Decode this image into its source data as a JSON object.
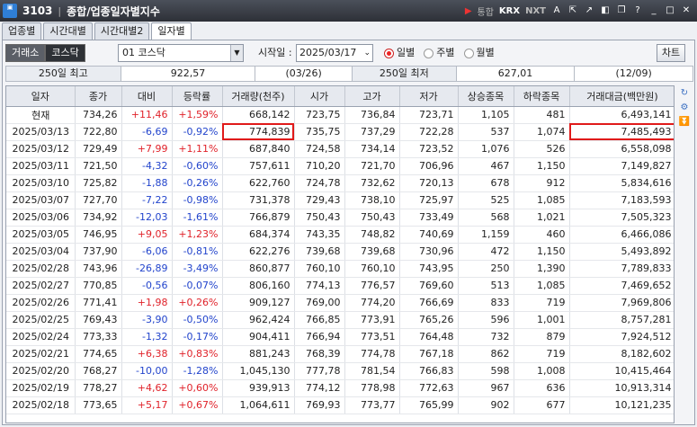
{
  "window": {
    "code": "3103",
    "title": "종합/업종일자별지수",
    "logo_text": "종합\n이미",
    "right_label": "통합",
    "krx": "KRX",
    "nxt": "NXT"
  },
  "tabs": [
    {
      "label": "업종별"
    },
    {
      "label": "시간대별"
    },
    {
      "label": "시간대별2"
    },
    {
      "label": "일자별"
    }
  ],
  "controls": {
    "exchange": "거래소",
    "kosdaq": "코스닥",
    "selected_index": "01  코스닥",
    "start_label": "시작일 :",
    "start_date": "2025/03/17",
    "daily": "일별",
    "weekly": "주별",
    "monthly": "월별",
    "chart": "차트"
  },
  "summary": {
    "high_label": "250일 최고",
    "high_value": "922,57",
    "high_date": "(03/26)",
    "low_label": "250일 최저",
    "low_value": "627,01",
    "low_date": "(12/09)"
  },
  "columns": [
    "일자",
    "종가",
    "대비",
    "등락률",
    "거래량(천주)",
    "시가",
    "고가",
    "저가",
    "상승종목",
    "하락종목",
    "거래대금(백만원)"
  ],
  "rows": [
    [
      "현재",
      "734,26",
      "+11,46",
      "+1,59%",
      "668,142",
      "723,75",
      "736,84",
      "723,71",
      "1,105",
      "481",
      "6,493,141"
    ],
    [
      "2025/03/13",
      "722,80",
      "-6,69",
      "-0,92%",
      "774,839",
      "735,75",
      "737,29",
      "722,28",
      "537",
      "1,074",
      "7,485,493"
    ],
    [
      "2025/03/12",
      "729,49",
      "+7,99",
      "+1,11%",
      "687,840",
      "724,58",
      "734,14",
      "723,52",
      "1,076",
      "526",
      "6,558,098"
    ],
    [
      "2025/03/11",
      "721,50",
      "-4,32",
      "-0,60%",
      "757,611",
      "710,20",
      "721,70",
      "706,96",
      "467",
      "1,150",
      "7,149,827"
    ],
    [
      "2025/03/10",
      "725,82",
      "-1,88",
      "-0,26%",
      "622,760",
      "724,78",
      "732,62",
      "720,13",
      "678",
      "912",
      "5,834,616"
    ],
    [
      "2025/03/07",
      "727,70",
      "-7,22",
      "-0,98%",
      "731,378",
      "729,43",
      "738,10",
      "725,97",
      "525",
      "1,085",
      "7,183,593"
    ],
    [
      "2025/03/06",
      "734,92",
      "-12,03",
      "-1,61%",
      "766,879",
      "750,43",
      "750,43",
      "733,49",
      "568",
      "1,021",
      "7,505,323"
    ],
    [
      "2025/03/05",
      "746,95",
      "+9,05",
      "+1,23%",
      "684,374",
      "743,35",
      "748,82",
      "740,69",
      "1,159",
      "460",
      "6,466,086"
    ],
    [
      "2025/03/04",
      "737,90",
      "-6,06",
      "-0,81%",
      "622,276",
      "739,68",
      "739,68",
      "730,96",
      "472",
      "1,150",
      "5,493,892"
    ],
    [
      "2025/02/28",
      "743,96",
      "-26,89",
      "-3,49%",
      "860,877",
      "760,10",
      "760,10",
      "743,95",
      "250",
      "1,390",
      "7,789,833"
    ],
    [
      "2025/02/27",
      "770,85",
      "-0,56",
      "-0,07%",
      "806,160",
      "774,13",
      "776,57",
      "769,60",
      "513",
      "1,085",
      "7,469,652"
    ],
    [
      "2025/02/26",
      "771,41",
      "+1,98",
      "+0,26%",
      "909,127",
      "769,00",
      "774,20",
      "766,69",
      "833",
      "719",
      "7,969,806"
    ],
    [
      "2025/02/25",
      "769,43",
      "-3,90",
      "-0,50%",
      "962,424",
      "766,85",
      "773,91",
      "765,26",
      "596",
      "1,001",
      "8,757,281"
    ],
    [
      "2025/02/24",
      "773,33",
      "-1,32",
      "-0,17%",
      "904,411",
      "766,94",
      "773,51",
      "764,48",
      "732",
      "879",
      "7,924,512"
    ],
    [
      "2025/02/21",
      "774,65",
      "+6,38",
      "+0,83%",
      "881,243",
      "768,39",
      "774,78",
      "767,18",
      "862",
      "719",
      "8,182,602"
    ],
    [
      "2025/02/20",
      "768,27",
      "-10,00",
      "-1,28%",
      "1,045,130",
      "777,78",
      "781,54",
      "766,83",
      "598",
      "1,008",
      "10,415,464"
    ],
    [
      "2025/02/19",
      "778,27",
      "+4,62",
      "+0,60%",
      "939,913",
      "774,12",
      "778,98",
      "772,63",
      "967",
      "636",
      "10,913,314"
    ],
    [
      "2025/02/18",
      "773,65",
      "+5,17",
      "+0,67%",
      "1,064,611",
      "769,93",
      "773,77",
      "765,99",
      "902",
      "677",
      "10,121,235"
    ]
  ],
  "highlighted_cells": [
    [
      1,
      4
    ],
    [
      1,
      10
    ]
  ],
  "colors": {
    "up": "#e0222a",
    "down": "#2244cc",
    "highlight": "#e01a1a"
  }
}
